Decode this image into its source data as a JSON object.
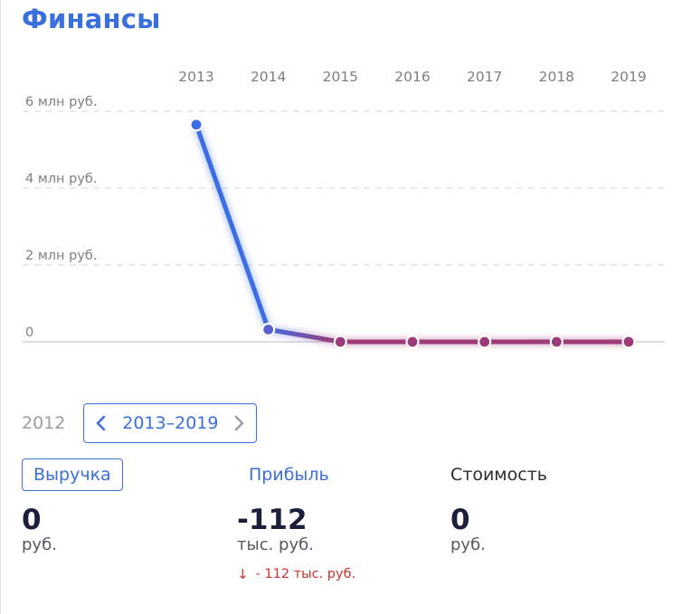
{
  "header": {
    "title": "Финансы"
  },
  "chart_data": {
    "type": "line",
    "x": [
      "2013",
      "2014",
      "2015",
      "2016",
      "2017",
      "2018",
      "2019"
    ],
    "values": [
      5650000,
      320000,
      0,
      0,
      0,
      0,
      0
    ],
    "y_ticks": [
      {
        "value": 6000000,
        "label": "6 млн руб."
      },
      {
        "value": 4000000,
        "label": "4 млн руб."
      },
      {
        "value": 2000000,
        "label": "2 млн руб."
      },
      {
        "value": 0,
        "label": "0"
      }
    ],
    "ylim": [
      0,
      6000000
    ],
    "grid": true,
    "colors": {
      "high": "#3b6ee6",
      "low": "#9c3b78",
      "gridline": "#dcdde0",
      "baseline": "#c9cbd0"
    }
  },
  "period": {
    "prev_year": "2012",
    "range_label": "2013–2019"
  },
  "metrics": [
    {
      "tab_label": "Выручка",
      "value": "0",
      "unit": "руб.",
      "change": ""
    },
    {
      "tab_label": "Прибыль",
      "value": "-112",
      "unit": "тыс. руб.",
      "change": "- 112 тыс. руб."
    },
    {
      "tab_label": "Стоимость",
      "value": "0",
      "unit": "руб.",
      "change": ""
    }
  ],
  "icons": {
    "change_arrow": "↓"
  }
}
